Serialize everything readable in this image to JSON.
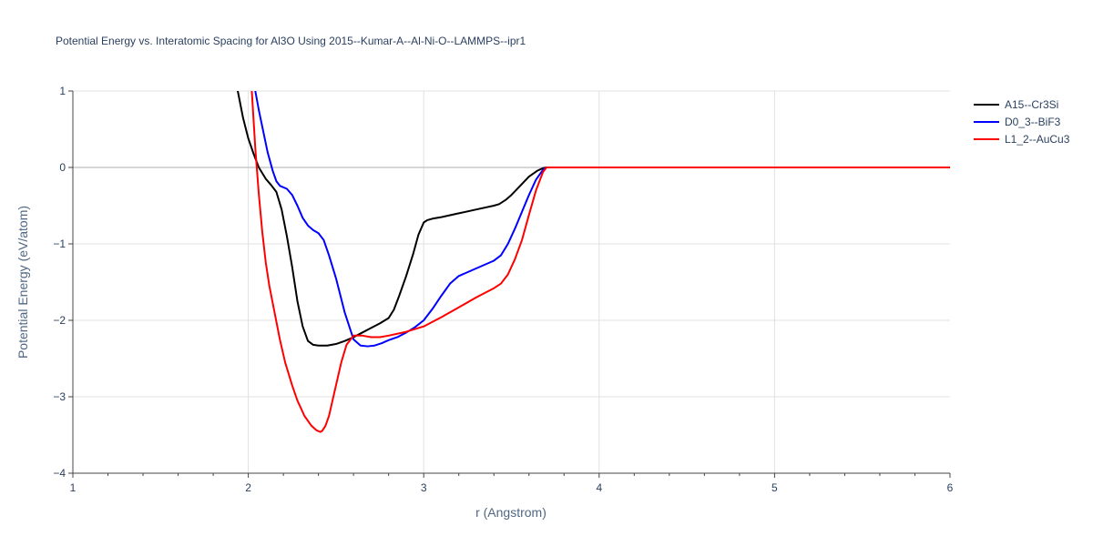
{
  "chart_data": {
    "type": "line",
    "title": "Potential Energy vs. Interatomic Spacing for Al3O Using 2015--Kumar-A--Al-Ni-O--LAMMPS--ipr1",
    "xlabel": "r (Angstrom)",
    "ylabel": "Potential Energy (eV/atom)",
    "xlim": [
      1,
      6
    ],
    "ylim": [
      -4,
      1
    ],
    "xticks": [
      1,
      2,
      3,
      4,
      5,
      6
    ],
    "yticks": [
      1,
      0,
      -1,
      -2,
      -3,
      -4
    ],
    "ytick_labels": [
      "1",
      "0",
      "−1",
      "−2",
      "−3",
      "−4"
    ],
    "grid": true,
    "legend_position": "top-right",
    "series": [
      {
        "name": "A15--Cr3Si",
        "color": "#000000",
        "x": [
          1.94,
          1.97,
          2.0,
          2.03,
          2.06,
          2.1,
          2.13,
          2.16,
          2.19,
          2.22,
          2.25,
          2.28,
          2.31,
          2.34,
          2.37,
          2.4,
          2.45,
          2.5,
          2.55,
          2.6,
          2.65,
          2.7,
          2.75,
          2.8,
          2.83,
          2.86,
          2.9,
          2.94,
          2.97,
          3.0,
          3.02,
          3.05,
          3.1,
          3.2,
          3.3,
          3.4,
          3.43,
          3.47,
          3.5,
          3.55,
          3.6,
          3.65,
          3.68,
          3.7,
          4.0,
          5.0,
          6.0
        ],
        "y": [
          1.0,
          0.65,
          0.38,
          0.18,
          0.0,
          -0.15,
          -0.23,
          -0.32,
          -0.55,
          -0.9,
          -1.3,
          -1.75,
          -2.08,
          -2.27,
          -2.32,
          -2.33,
          -2.33,
          -2.31,
          -2.27,
          -2.22,
          -2.16,
          -2.1,
          -2.04,
          -1.97,
          -1.86,
          -1.68,
          -1.42,
          -1.13,
          -0.88,
          -0.72,
          -0.69,
          -0.67,
          -0.65,
          -0.6,
          -0.55,
          -0.5,
          -0.48,
          -0.42,
          -0.36,
          -0.24,
          -0.12,
          -0.04,
          -0.01,
          0.0,
          0.0,
          0.0,
          0.0
        ]
      },
      {
        "name": "D0_3--BiF3",
        "color": "#0000ff",
        "x": [
          2.04,
          2.06,
          2.09,
          2.11,
          2.14,
          2.16,
          2.18,
          2.22,
          2.25,
          2.28,
          2.31,
          2.34,
          2.37,
          2.4,
          2.43,
          2.46,
          2.5,
          2.55,
          2.6,
          2.64,
          2.68,
          2.72,
          2.76,
          2.8,
          2.85,
          2.9,
          2.95,
          3.0,
          3.05,
          3.1,
          3.15,
          3.2,
          3.3,
          3.4,
          3.44,
          3.48,
          3.52,
          3.56,
          3.6,
          3.64,
          3.68,
          3.7,
          4.0,
          5.0,
          6.0
        ],
        "y": [
          1.0,
          0.75,
          0.42,
          0.2,
          -0.05,
          -0.18,
          -0.24,
          -0.28,
          -0.36,
          -0.5,
          -0.66,
          -0.76,
          -0.82,
          -0.86,
          -0.95,
          -1.15,
          -1.45,
          -1.9,
          -2.25,
          -2.33,
          -2.34,
          -2.33,
          -2.3,
          -2.26,
          -2.22,
          -2.16,
          -2.09,
          -2.0,
          -1.85,
          -1.68,
          -1.52,
          -1.42,
          -1.32,
          -1.22,
          -1.15,
          -1.0,
          -0.8,
          -0.58,
          -0.36,
          -0.16,
          -0.03,
          0.0,
          0.0,
          0.0,
          0.0
        ]
      },
      {
        "name": "L1_2--AuCu3",
        "color": "#ff0000",
        "x": [
          2.02,
          2.04,
          2.06,
          2.08,
          2.1,
          2.12,
          2.15,
          2.18,
          2.21,
          2.25,
          2.28,
          2.32,
          2.36,
          2.39,
          2.41,
          2.42,
          2.44,
          2.46,
          2.48,
          2.5,
          2.53,
          2.56,
          2.6,
          2.65,
          2.7,
          2.75,
          2.8,
          2.9,
          3.0,
          3.1,
          3.2,
          3.3,
          3.4,
          3.44,
          3.48,
          3.52,
          3.56,
          3.6,
          3.64,
          3.68,
          3.7,
          4.0,
          5.0,
          6.0
        ],
        "y": [
          1.0,
          0.25,
          -0.35,
          -0.85,
          -1.25,
          -1.55,
          -1.9,
          -2.25,
          -2.55,
          -2.85,
          -3.05,
          -3.25,
          -3.38,
          -3.44,
          -3.46,
          -3.45,
          -3.38,
          -3.25,
          -3.05,
          -2.85,
          -2.55,
          -2.32,
          -2.2,
          -2.2,
          -2.22,
          -2.22,
          -2.2,
          -2.15,
          -2.08,
          -1.96,
          -1.83,
          -1.7,
          -1.58,
          -1.52,
          -1.4,
          -1.2,
          -0.95,
          -0.62,
          -0.3,
          -0.06,
          0.0,
          0.0,
          0.0,
          0.0
        ]
      }
    ]
  }
}
